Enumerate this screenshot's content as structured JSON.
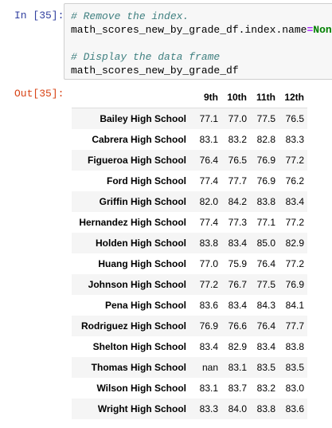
{
  "input": {
    "prompt": "In [35]:",
    "lines": [
      [
        {
          "text": "# Remove the index.",
          "kind": "comment"
        }
      ],
      [
        {
          "text": "math_scores_new_by_grade_df.index.name",
          "kind": "name"
        },
        {
          "text": "=",
          "kind": "operator"
        },
        {
          "text": "None",
          "kind": "keyword"
        }
      ],
      [],
      [
        {
          "text": "# Display the data frame",
          "kind": "comment"
        }
      ],
      [
        {
          "text": "math_scores_new_by_grade_df",
          "kind": "name"
        }
      ]
    ]
  },
  "output": {
    "prompt": "Out[35]:",
    "table": {
      "columns": [
        "9th",
        "10th",
        "11th",
        "12th"
      ],
      "rows": [
        {
          "label": "Bailey High School",
          "cells": [
            "77.1",
            "77.0",
            "77.5",
            "76.5"
          ]
        },
        {
          "label": "Cabrera High School",
          "cells": [
            "83.1",
            "83.2",
            "82.8",
            "83.3"
          ]
        },
        {
          "label": "Figueroa High School",
          "cells": [
            "76.4",
            "76.5",
            "76.9",
            "77.2"
          ]
        },
        {
          "label": "Ford High School",
          "cells": [
            "77.4",
            "77.7",
            "76.9",
            "76.2"
          ]
        },
        {
          "label": "Griffin High School",
          "cells": [
            "82.0",
            "84.2",
            "83.8",
            "83.4"
          ]
        },
        {
          "label": "Hernandez High School",
          "cells": [
            "77.4",
            "77.3",
            "77.1",
            "77.2"
          ]
        },
        {
          "label": "Holden High School",
          "cells": [
            "83.8",
            "83.4",
            "85.0",
            "82.9"
          ]
        },
        {
          "label": "Huang High School",
          "cells": [
            "77.0",
            "75.9",
            "76.4",
            "77.2"
          ]
        },
        {
          "label": "Johnson High School",
          "cells": [
            "77.2",
            "76.7",
            "77.5",
            "76.9"
          ]
        },
        {
          "label": "Pena High School",
          "cells": [
            "83.6",
            "83.4",
            "84.3",
            "84.1"
          ]
        },
        {
          "label": "Rodriguez High School",
          "cells": [
            "76.9",
            "76.6",
            "76.4",
            "77.7"
          ]
        },
        {
          "label": "Shelton High School",
          "cells": [
            "83.4",
            "82.9",
            "83.4",
            "83.8"
          ]
        },
        {
          "label": "Thomas High School",
          "cells": [
            "nan",
            "83.1",
            "83.5",
            "83.5"
          ]
        },
        {
          "label": "Wilson High School",
          "cells": [
            "83.1",
            "83.7",
            "83.2",
            "83.0"
          ]
        },
        {
          "label": "Wright High School",
          "cells": [
            "83.3",
            "84.0",
            "83.8",
            "83.6"
          ]
        }
      ]
    }
  }
}
